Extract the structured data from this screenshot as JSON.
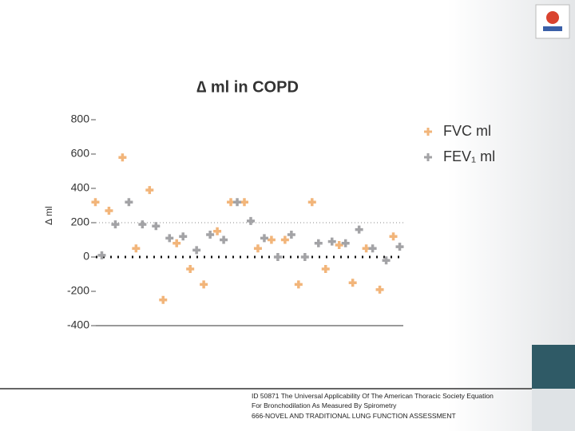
{
  "chart_data": {
    "type": "scatter",
    "title": "∆ ml in COPD",
    "ylabel": "∆ ml",
    "categories": [
      null,
      null,
      null,
      null,
      null,
      null,
      null,
      null,
      null,
      null,
      null,
      null,
      null,
      null,
      null,
      null,
      null,
      null,
      null,
      null,
      null,
      null,
      null
    ],
    "series": [
      {
        "name": "FVC ml",
        "color": "#f2b57a",
        "values": [
          320,
          270,
          580,
          50,
          390,
          -250,
          80,
          -70,
          -160,
          150,
          320,
          320,
          50,
          100,
          100,
          -160,
          320,
          -70,
          70,
          -150,
          50,
          -190,
          120
        ]
      },
      {
        "name": "FEV₁ ml",
        "color": "#a3a3a6",
        "values": [
          10,
          190,
          320,
          190,
          180,
          110,
          120,
          40,
          130,
          100,
          320,
          210,
          110,
          0,
          130,
          0,
          80,
          90,
          80,
          160,
          50,
          -20,
          60
        ]
      }
    ],
    "ylim": [
      -400,
      800
    ],
    "yticks": [
      -400,
      -200,
      0,
      200,
      400,
      600,
      800
    ],
    "reference_lines": [
      200,
      0
    ],
    "legend": "upper right"
  },
  "footer": {
    "lines": [
      "ID 50871 The Universal Applicability Of The American Thoracic Society Equation",
      "For Bronchodilation As Measured By Spirometry",
      "666-NOVEL AND TRADITIONAL LUNG FUNCTION ASSESSMENT"
    ]
  }
}
